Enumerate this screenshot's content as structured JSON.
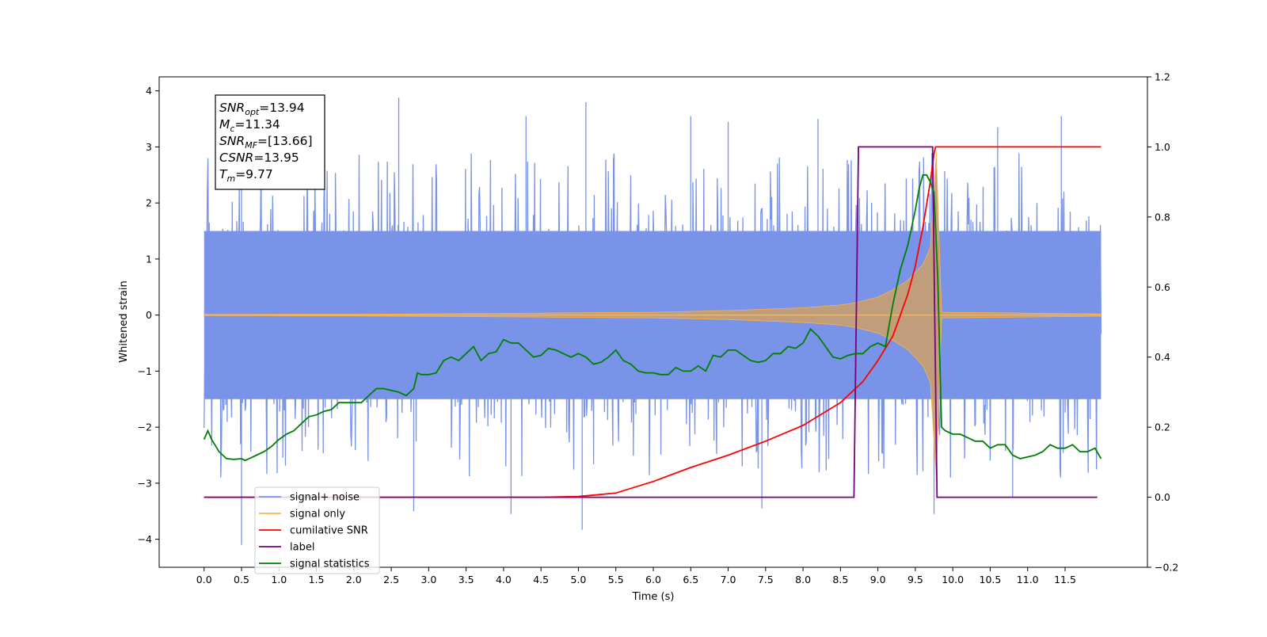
{
  "chart_data": {
    "type": "line",
    "xlabel": "Time (s)",
    "ylabel": "Whitened strain",
    "xlim": [
      -0.6,
      12.6
    ],
    "ylim": [
      -4.5,
      4.25
    ],
    "y2lim": [
      -0.2,
      1.2
    ],
    "grid": false,
    "legend_position": "lower-left",
    "x_ticks": [
      0.0,
      0.5,
      1.0,
      1.5,
      2.0,
      2.5,
      3.0,
      3.5,
      4.0,
      4.5,
      5.0,
      5.5,
      6.0,
      6.5,
      7.0,
      7.5,
      8.0,
      8.5,
      9.0,
      9.5,
      10.0,
      10.5,
      11.0,
      11.5
    ],
    "x_tick_labels": [
      "0.0",
      "0.5",
      "1.0",
      "1.5",
      "2.0",
      "2.5",
      "3.0",
      "3.5",
      "4.0",
      "4.5",
      "5.0",
      "5.5",
      "6.0",
      "6.5",
      "7.0",
      "7.5",
      "8.0",
      "8.5",
      "9.0",
      "9.5",
      "10.0",
      "10.5",
      "11.0",
      "11.5"
    ],
    "y_ticks": [
      -4,
      -3,
      -2,
      -1,
      0,
      1,
      2,
      3,
      4
    ],
    "y_tick_labels": [
      "−4",
      "−3",
      "−2",
      "−1",
      "0",
      "1",
      "2",
      "3",
      "4"
    ],
    "y2_ticks": [
      -0.2,
      0.0,
      0.2,
      0.4,
      0.6,
      0.8,
      1.0,
      1.2
    ],
    "y2_tick_labels": [
      "−0.2",
      "0.0",
      "0.2",
      "0.4",
      "0.6",
      "0.8",
      "1.0",
      "1.2"
    ],
    "annotation": {
      "lines": [
        {
          "sym": "SNR",
          "sub": "opt",
          "value": "=13.94"
        },
        {
          "sym": "M",
          "sub": "c",
          "value": "=11.34"
        },
        {
          "sym": "SNR",
          "sub": "MF",
          "value": "=[13.66]"
        },
        {
          "sym": "CSNR",
          "sub": "",
          "value": "=13.95"
        },
        {
          "sym": "T",
          "sub": "m",
          "value": "=9.77"
        }
      ]
    },
    "series": [
      {
        "name": "signal+ noise",
        "axis": "left",
        "color": "#7893e8",
        "note_kind": "dense noise band",
        "x_range": [
          0.0,
          11.98
        ],
        "band": {
          "core_low": -1.5,
          "core_high": 1.5
        },
        "peaks": [
          {
            "x": 2.6,
            "y": 3.88
          },
          {
            "x": 5.1,
            "y": 3.8
          },
          {
            "x": 6.5,
            "y": 3.55
          },
          {
            "x": 4.3,
            "y": 3.55
          },
          {
            "x": 11.45,
            "y": 3.55
          },
          {
            "x": 0.5,
            "y": 2.9
          },
          {
            "x": 7.0,
            "y": 3.45
          },
          {
            "x": 8.2,
            "y": 3.5
          },
          {
            "x": 10.6,
            "y": 3.35
          }
        ],
        "troughs": [
          {
            "x": 0.5,
            "y": -4.1
          },
          {
            "x": 5.05,
            "y": -3.83
          },
          {
            "x": 4.1,
            "y": -3.55
          },
          {
            "x": 9.75,
            "y": -3.55
          },
          {
            "x": 7.45,
            "y": -3.45
          },
          {
            "x": 2.8,
            "y": -3.5
          },
          {
            "x": 10.8,
            "y": -3.25
          }
        ]
      },
      {
        "name": "signal only",
        "axis": "left",
        "color": "#ffb347",
        "note_kind": "chirp envelope",
        "x": [
          0.0,
          2.0,
          4.0,
          6.0,
          7.0,
          8.0,
          8.5,
          8.7,
          9.0,
          9.2,
          9.4,
          9.6,
          9.7,
          9.78,
          9.85,
          11.98
        ],
        "envelope": [
          0.01,
          0.015,
          0.03,
          0.05,
          0.08,
          0.13,
          0.18,
          0.22,
          0.32,
          0.45,
          0.62,
          0.9,
          1.2,
          2.9,
          0.05,
          0.02
        ]
      },
      {
        "name": "cumilative SNR",
        "axis": "right",
        "color": "#ff0000",
        "x": [
          0.0,
          4.5,
          5.0,
          5.5,
          6.0,
          6.5,
          7.0,
          7.5,
          8.0,
          8.5,
          8.8,
          9.0,
          9.2,
          9.4,
          9.5,
          9.6,
          9.7,
          9.75,
          9.77,
          11.98
        ],
        "values": [
          0.0,
          0.0,
          0.002,
          0.012,
          0.045,
          0.085,
          0.12,
          0.16,
          0.205,
          0.27,
          0.33,
          0.39,
          0.46,
          0.58,
          0.66,
          0.77,
          0.9,
          0.98,
          1.0,
          1.0
        ]
      },
      {
        "name": "label",
        "axis": "right",
        "color": "#7a007a",
        "x": [
          0.0,
          8.68,
          8.74,
          9.73,
          9.79,
          11.93
        ],
        "values": [
          0.0,
          0.0,
          1.0,
          1.0,
          0.0,
          0.0
        ]
      },
      {
        "name": "signal statistics",
        "axis": "right",
        "color": "#008000",
        "x": [
          0.0,
          0.05,
          0.1,
          0.2,
          0.3,
          0.4,
          0.5,
          0.55,
          0.6,
          0.7,
          0.8,
          0.9,
          1.0,
          1.1,
          1.2,
          1.3,
          1.4,
          1.5,
          1.6,
          1.7,
          1.8,
          1.9,
          2.0,
          2.1,
          2.2,
          2.3,
          2.4,
          2.5,
          2.6,
          2.7,
          2.8,
          2.85,
          2.9,
          3.0,
          3.1,
          3.2,
          3.3,
          3.4,
          3.5,
          3.6,
          3.7,
          3.8,
          3.9,
          4.0,
          4.1,
          4.2,
          4.3,
          4.4,
          4.5,
          4.6,
          4.7,
          4.8,
          4.9,
          5.0,
          5.1,
          5.2,
          5.3,
          5.4,
          5.5,
          5.6,
          5.7,
          5.8,
          5.9,
          6.0,
          6.1,
          6.2,
          6.3,
          6.4,
          6.5,
          6.6,
          6.7,
          6.8,
          6.9,
          7.0,
          7.1,
          7.2,
          7.3,
          7.4,
          7.5,
          7.6,
          7.7,
          7.8,
          7.9,
          8.0,
          8.1,
          8.2,
          8.3,
          8.4,
          8.5,
          8.6,
          8.7,
          8.8,
          8.9,
          9.0,
          9.1,
          9.2,
          9.3,
          9.4,
          9.5,
          9.55,
          9.6,
          9.65,
          9.7,
          9.75,
          9.8,
          9.85,
          9.9,
          10.0,
          10.1,
          10.2,
          10.3,
          10.4,
          10.5,
          10.6,
          10.7,
          10.8,
          10.9,
          11.0,
          11.1,
          11.2,
          11.3,
          11.4,
          11.5,
          11.6,
          11.7,
          11.8,
          11.9,
          11.98
        ],
        "values": [
          0.165,
          0.19,
          0.165,
          0.13,
          0.11,
          0.108,
          0.11,
          0.105,
          0.11,
          0.12,
          0.13,
          0.145,
          0.165,
          0.18,
          0.19,
          0.21,
          0.23,
          0.235,
          0.245,
          0.25,
          0.27,
          0.27,
          0.27,
          0.27,
          0.29,
          0.31,
          0.31,
          0.305,
          0.3,
          0.29,
          0.31,
          0.355,
          0.35,
          0.35,
          0.355,
          0.39,
          0.4,
          0.39,
          0.41,
          0.43,
          0.39,
          0.41,
          0.415,
          0.45,
          0.44,
          0.44,
          0.42,
          0.4,
          0.405,
          0.425,
          0.42,
          0.41,
          0.4,
          0.41,
          0.4,
          0.38,
          0.385,
          0.4,
          0.42,
          0.39,
          0.38,
          0.36,
          0.355,
          0.355,
          0.35,
          0.35,
          0.37,
          0.36,
          0.36,
          0.375,
          0.36,
          0.405,
          0.4,
          0.42,
          0.42,
          0.405,
          0.39,
          0.385,
          0.39,
          0.41,
          0.41,
          0.43,
          0.425,
          0.44,
          0.48,
          0.46,
          0.43,
          0.4,
          0.395,
          0.405,
          0.41,
          0.41,
          0.43,
          0.44,
          0.43,
          0.55,
          0.65,
          0.72,
          0.82,
          0.88,
          0.92,
          0.92,
          0.9,
          0.87,
          0.62,
          0.2,
          0.19,
          0.18,
          0.18,
          0.17,
          0.16,
          0.16,
          0.14,
          0.15,
          0.15,
          0.12,
          0.11,
          0.115,
          0.12,
          0.13,
          0.15,
          0.14,
          0.14,
          0.15,
          0.13,
          0.13,
          0.14,
          0.11
        ]
      }
    ]
  }
}
